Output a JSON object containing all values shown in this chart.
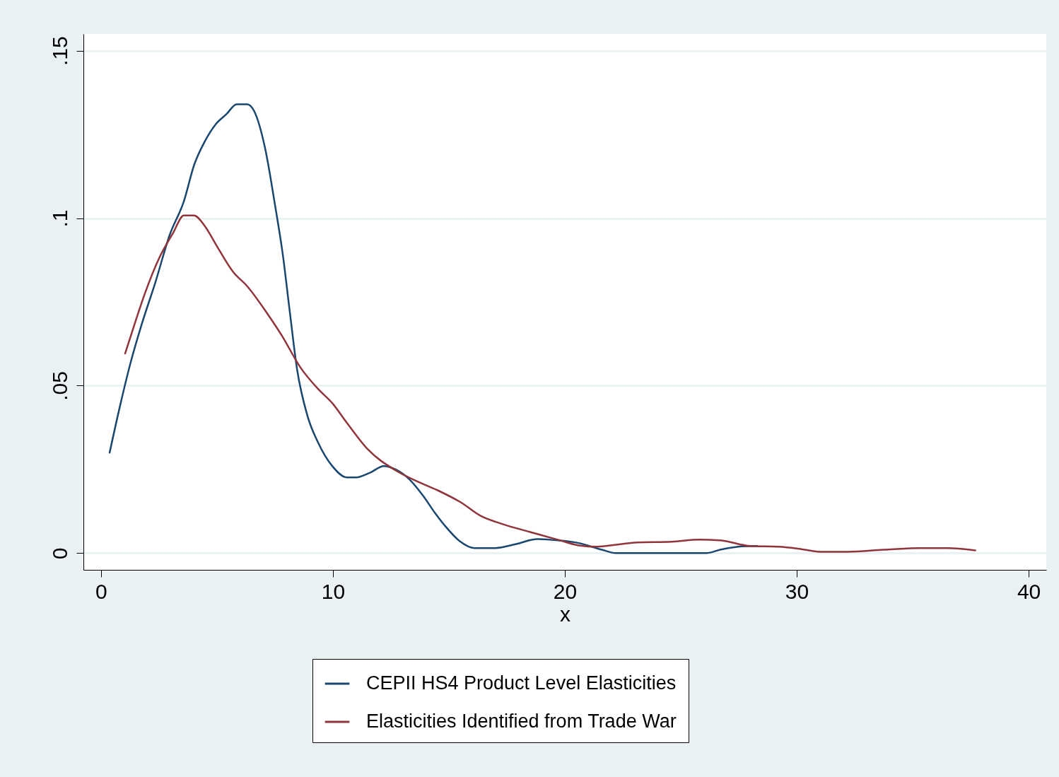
{
  "chart_data": {
    "type": "line",
    "xlabel": "x",
    "xlim": [
      -0.76,
      40.76
    ],
    "ylim": [
      -0.005,
      0.155
    ],
    "xticks": [
      0,
      10,
      20,
      30,
      40
    ],
    "yticks": [
      {
        "value": 0,
        "label": "0"
      },
      {
        "value": 0.05,
        "label": ".05"
      },
      {
        "value": 0.1,
        "label": ".1"
      },
      {
        "value": 0.15,
        "label": ".15"
      }
    ],
    "grid": "y",
    "legend": "bottom",
    "marker": "none",
    "line_style": "solid",
    "series": [
      {
        "name": "CEPII HS4 Product Level Elasticities",
        "color": "#1a476f",
        "x": [
          0.37,
          0.82,
          1.28,
          1.74,
          2.35,
          2.96,
          3.57,
          4.02,
          4.48,
          4.94,
          5.4,
          5.85,
          6.3,
          6.6,
          7.07,
          7.5,
          7.84,
          8.14,
          8.45,
          8.9,
          9.36,
          9.97,
          10.6,
          11.0,
          11.6,
          12.2,
          12.7,
          13.3,
          13.9,
          14.4,
          14.85,
          15.46,
          16.1,
          17.0,
          17.9,
          18.8,
          19.7,
          20.6,
          21.6,
          22.2,
          26.1,
          26.7,
          27.65,
          28.3
        ],
        "values": [
          0.03,
          0.044,
          0.057,
          0.068,
          0.081,
          0.095,
          0.105,
          0.116,
          0.123,
          0.128,
          0.131,
          0.134,
          0.134,
          0.132,
          0.121,
          0.104,
          0.089,
          0.072,
          0.055,
          0.041,
          0.033,
          0.026,
          0.0226,
          0.0226,
          0.024,
          0.026,
          0.025,
          0.022,
          0.017,
          0.012,
          0.008,
          0.0036,
          0.0015,
          0.0015,
          0.0027,
          0.0042,
          0.0038,
          0.003,
          0.001,
          0,
          0,
          0.001,
          0.002,
          0.0021
        ]
      },
      {
        "name": "Elasticities Identified from Trade War",
        "color": "#90353b",
        "x": [
          1.04,
          1.43,
          1.89,
          2.5,
          3.1,
          3.57,
          4.0,
          4.48,
          4.94,
          5.7,
          6.3,
          7.2,
          7.8,
          8.6,
          9.36,
          9.97,
          10.6,
          11.5,
          12.7,
          13.6,
          14.5,
          15.5,
          16.4,
          17.3,
          18.5,
          19.7,
          20.6,
          21.4,
          22.2,
          23.1,
          24.6,
          25.8,
          26.7,
          28.0,
          29.2,
          30.1,
          31.0,
          32.2,
          33.75,
          35.3,
          36.5,
          37.7
        ],
        "values": [
          0.0596,
          0.068,
          0.0775,
          0.088,
          0.0955,
          0.1008,
          0.1008,
          0.0976,
          0.0923,
          0.0839,
          0.0797,
          0.0712,
          0.0649,
          0.0554,
          0.049,
          0.0448,
          0.0389,
          0.031,
          0.0247,
          0.0215,
          0.0188,
          0.0152,
          0.011,
          0.0087,
          0.0063,
          0.004,
          0.0023,
          0.0019,
          0.0025,
          0.0032,
          0.0034,
          0.004,
          0.0038,
          0.0021,
          0.0019,
          0.0013,
          0.0004,
          0.0004,
          0.001,
          0.0015,
          0.0015,
          0.0008
        ]
      }
    ]
  }
}
